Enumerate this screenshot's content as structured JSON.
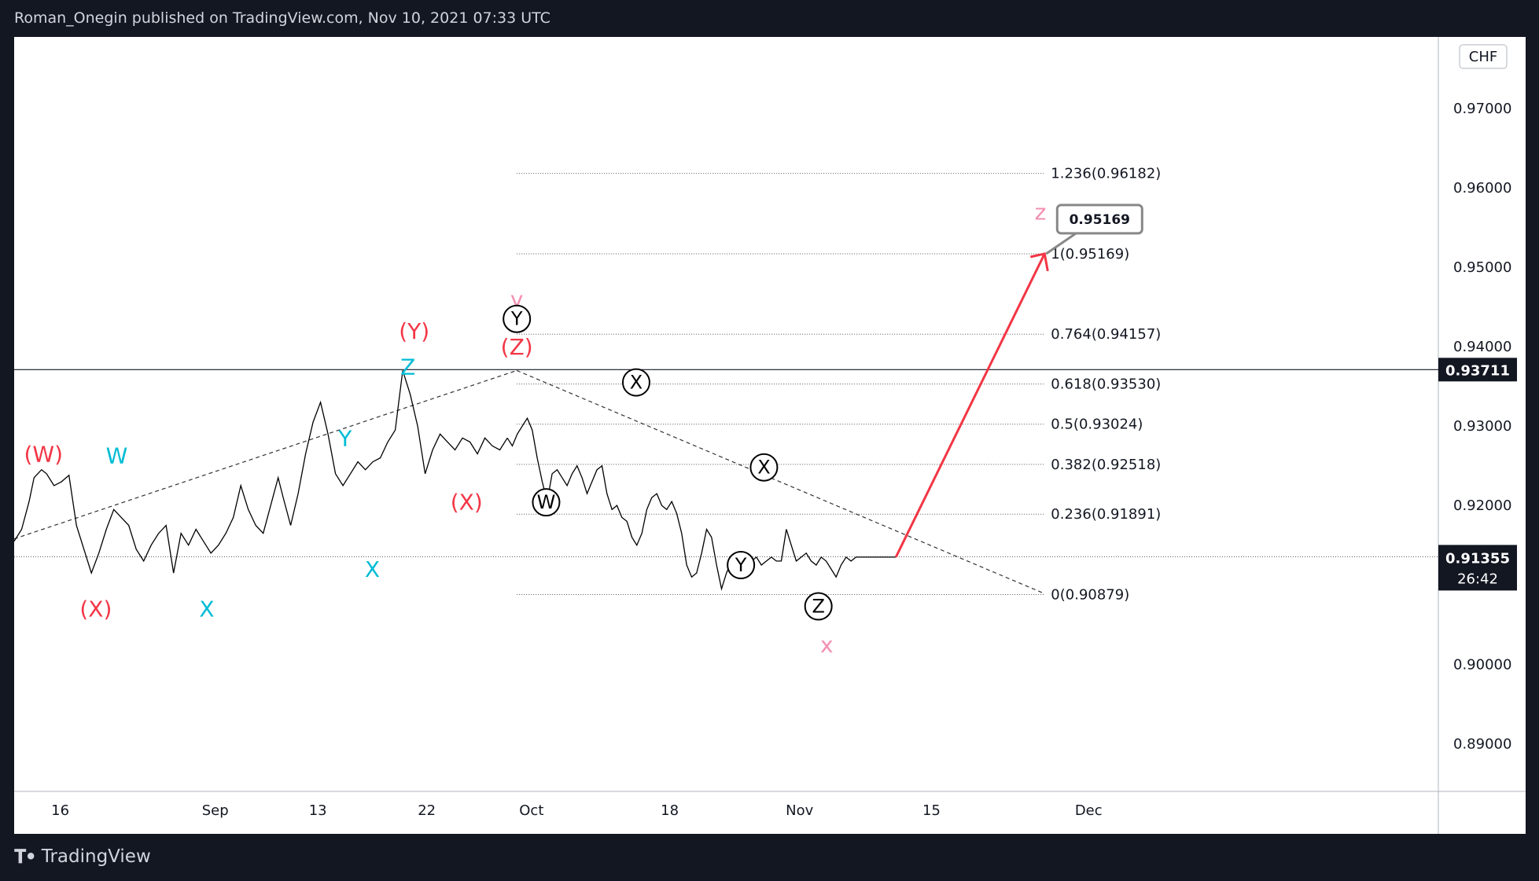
{
  "header": {
    "text": "Roman_Onegin published on TradingView.com, Nov 10, 2021 07:33 UTC"
  },
  "footer": {
    "logo_icon": "tradingview-logo-icon",
    "brand": "TradingView"
  },
  "chart_data": {
    "type": "line",
    "instrument_currency": "CHF",
    "x_axis_ticks": [
      "16",
      "Sep",
      "13",
      "22",
      "Oct",
      "18",
      "Nov",
      "15",
      "Dec"
    ],
    "y_axis": {
      "ylim": [
        0.884,
        0.979
      ],
      "ticks": [
        0.97,
        0.96,
        0.95,
        0.94,
        0.93,
        0.92,
        0.91,
        0.9,
        0.89
      ],
      "tick_labels": [
        "0.97000",
        "0.96000",
        "0.95000",
        "0.94000",
        "0.93000",
        "0.92000",
        "0.91000",
        "0.90000",
        "0.89000"
      ]
    },
    "price_line": {
      "x": [
        0,
        3,
        6,
        8,
        11,
        13,
        16,
        19,
        22,
        25,
        28,
        31,
        34,
        37,
        40,
        43,
        46,
        49,
        52,
        55,
        58,
        61,
        64,
        67,
        70,
        73,
        76,
        79,
        82,
        85,
        88,
        91,
        94,
        97,
        100,
        103,
        106,
        108,
        111,
        114,
        117,
        120,
        123,
        126,
        129,
        132,
        135,
        138,
        141,
        144,
        147,
        150,
        153,
        156,
        159,
        162,
        165,
        168,
        171,
        174,
        177,
        180,
        183,
        186,
        189,
        192,
        195,
        198
      ],
      "y": [
        0.9155,
        0.917,
        0.9205,
        0.9235,
        0.9245,
        0.924,
        0.9225,
        0.923,
        0.9238,
        0.9175,
        0.9145,
        0.9115,
        0.914,
        0.917,
        0.9195,
        0.9185,
        0.9175,
        0.9145,
        0.913,
        0.915,
        0.9165,
        0.9175,
        0.9115,
        0.9165,
        0.915,
        0.917,
        0.9155,
        0.914,
        0.915,
        0.9165,
        0.9185,
        0.9225,
        0.9195,
        0.9175,
        0.9165,
        0.92,
        0.9235,
        0.921,
        0.9175,
        0.9215,
        0.9265,
        0.9305,
        0.933,
        0.929,
        0.924,
        0.9225,
        0.924,
        0.9255,
        0.9245,
        0.9255,
        0.926,
        0.928,
        0.9295,
        0.937,
        0.934,
        0.93,
        0.924,
        0.927,
        0.929,
        0.928,
        0.927,
        0.9285,
        0.928,
        0.9265,
        0.9285,
        0.9275,
        0.927,
        0.9285
      ]
    },
    "price_line_b": {
      "x": [
        198,
        200,
        202,
        204,
        206,
        208,
        210,
        212,
        214,
        216,
        218,
        220,
        222,
        224,
        226,
        228,
        230,
        232,
        234,
        236,
        238,
        240,
        242,
        244,
        246,
        248,
        250,
        252,
        254,
        256,
        258,
        260,
        262,
        264,
        266,
        268,
        270,
        272,
        274,
        276,
        278,
        280,
        282,
        284,
        286,
        288,
        290,
        292,
        294,
        296,
        298,
        300,
        302,
        304,
        306,
        308,
        310,
        312,
        314,
        316,
        318,
        320,
        322,
        324,
        326,
        328,
        330,
        332,
        334,
        336,
        338,
        340,
        342,
        344,
        346,
        348,
        350,
        352,
        354
      ],
      "y": [
        0.9285,
        0.9275,
        0.929,
        0.93,
        0.931,
        0.9295,
        0.926,
        0.923,
        0.9205,
        0.924,
        0.9245,
        0.9235,
        0.9225,
        0.924,
        0.925,
        0.9235,
        0.9215,
        0.923,
        0.9245,
        0.925,
        0.9215,
        0.9195,
        0.92,
        0.9185,
        0.918,
        0.916,
        0.915,
        0.9165,
        0.9195,
        0.921,
        0.9215,
        0.92,
        0.9195,
        0.9205,
        0.919,
        0.9165,
        0.9125,
        0.911,
        0.9115,
        0.914,
        0.917,
        0.916,
        0.9125,
        0.9095,
        0.9115,
        0.913,
        0.914,
        0.9135,
        0.9125,
        0.913,
        0.9135,
        0.9125,
        0.913,
        0.9135,
        0.913,
        0.913,
        0.917,
        0.915,
        0.913,
        0.9135,
        0.914,
        0.913,
        0.9125,
        0.9135,
        0.913,
        0.912,
        0.911,
        0.9125,
        0.9135,
        0.913,
        0.9135,
        0.9135,
        0.9135,
        0.9135,
        0.9135,
        0.9135,
        0.9135,
        0.9135,
        0.9135
      ]
    },
    "current_price": {
      "value": 0.91355,
      "label": "0.91355",
      "countdown": "26:42"
    },
    "marked_level": {
      "value": 0.93711,
      "label": "0.93711"
    },
    "fib_levels": [
      {
        "value": 0.96182,
        "label": "1.236(0.96182)"
      },
      {
        "value": 0.95169,
        "label": "1(0.95169)"
      },
      {
        "value": 0.94157,
        "label": "0.764(0.94157)"
      },
      {
        "value": 0.9353,
        "label": "0.618(0.93530)"
      },
      {
        "value": 0.93024,
        "label": "0.5(0.93024)"
      },
      {
        "value": 0.92518,
        "label": "0.382(0.92518)"
      },
      {
        "value": 0.91891,
        "label": "0.236(0.91891)"
      },
      {
        "value": 0.90879,
        "label": "0(0.90879)"
      }
    ],
    "target": {
      "value": 0.95169,
      "label": "0.95169"
    },
    "wave_labels": [
      {
        "text": "(W)",
        "color": "#f23645"
      },
      {
        "text": "(X)",
        "color": "#f23645"
      },
      {
        "text": "(Y)",
        "color": "#f23645"
      },
      {
        "text": "(X)",
        "color": "#f23645"
      },
      {
        "text": "(Z)",
        "color": "#f23645"
      },
      {
        "text": "W",
        "color": "#00bcd4"
      },
      {
        "text": "X",
        "color": "#00bcd4"
      },
      {
        "text": "Y",
        "color": "#00bcd4"
      },
      {
        "text": "X",
        "color": "#00bcd4"
      },
      {
        "text": "Z",
        "color": "#00bcd4"
      },
      {
        "text": "y",
        "color": "#f48fb1"
      },
      {
        "text": "x",
        "color": "#f48fb1"
      },
      {
        "text": "z",
        "color": "#f48fb1"
      }
    ],
    "circled_labels": [
      "Y",
      "W",
      "X",
      "Y",
      "X",
      "Z"
    ]
  }
}
